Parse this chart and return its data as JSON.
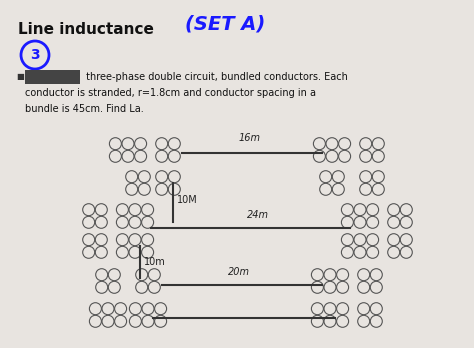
{
  "title": "Line inductance",
  "set_label": "(SET A)",
  "bullet_text_line1": " three-phase double circuit, bundled conductors. Each",
  "bullet_text_line2": "conductor is stranded, r=1.8cm and conductor spacing in a",
  "bullet_text_line3": "bundle is 45cm. Find La.",
  "bg_color": "#e8e4e0",
  "diagram_bg": "#f0eeec",
  "text_color": "#111111",
  "title_fontsize": 11,
  "body_fontsize": 7,
  "set_color": "#1a1aff",
  "circle_number": "3",
  "dim_16m": "16m",
  "dim_10m_top": "10M",
  "dim_24m": "24m",
  "dim_10m_bot": "10m",
  "dim_20m": "20m",
  "conductor_color": "#555555",
  "line_color": "#333333"
}
